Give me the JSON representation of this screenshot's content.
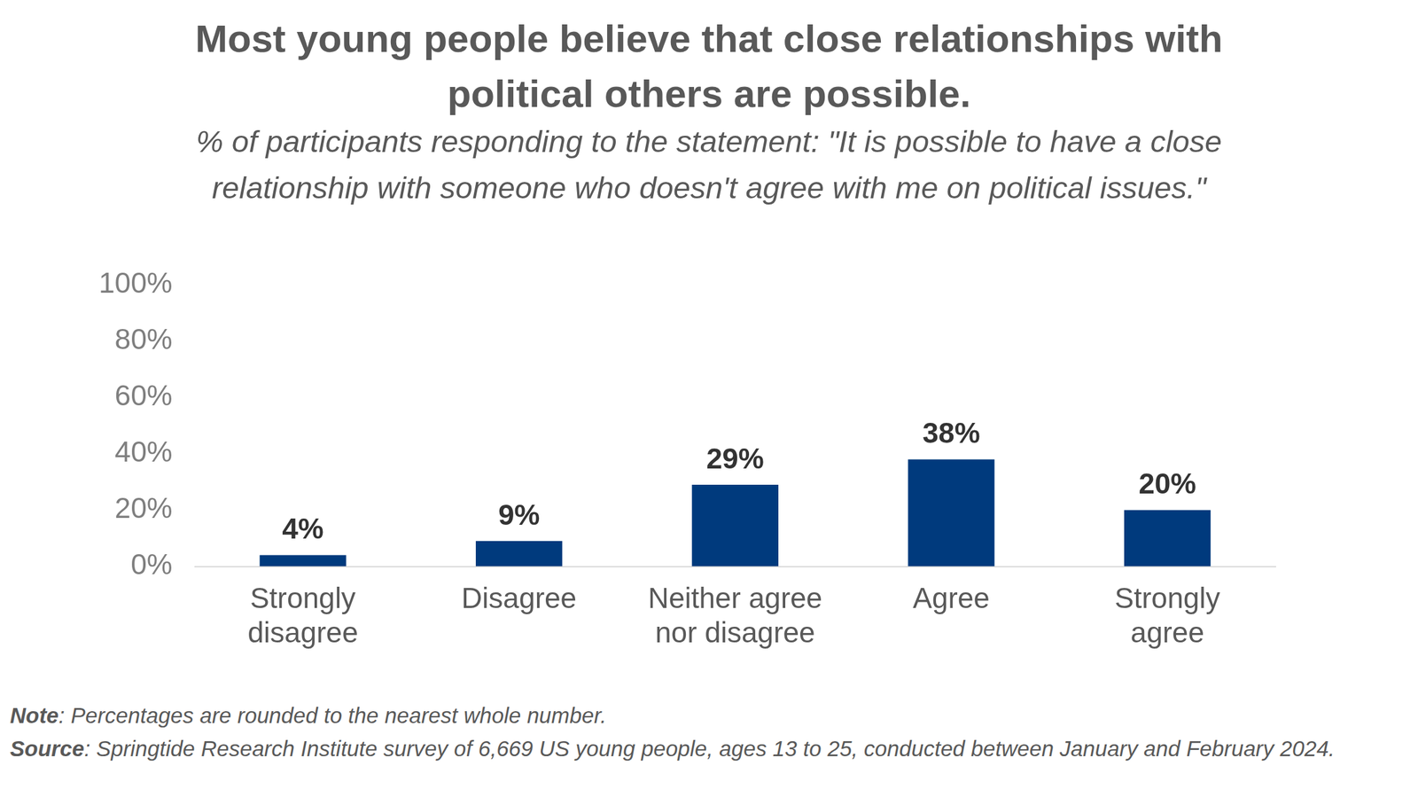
{
  "chart_data": {
    "type": "bar",
    "title": "Most young people believe that close relationships with political others are possible.",
    "subtitle": "% of participants responding to the statement: \"It is possible to have a close relationship with someone who doesn't agree with me on political issues.\"",
    "categories": [
      "Strongly disagree",
      "Disagree",
      "Neither agree nor disagree",
      "Agree",
      "Strongly agree"
    ],
    "values": [
      4,
      9,
      29,
      38,
      20
    ],
    "value_labels": [
      "4%",
      "9%",
      "29%",
      "38%",
      "20%"
    ],
    "color": "#003a7d",
    "ylim": [
      0,
      100
    ],
    "yticks": [
      {
        "value": 0,
        "label": "0%"
      },
      {
        "value": 20,
        "label": "20%"
      },
      {
        "value": 40,
        "label": "40%"
      },
      {
        "value": 60,
        "label": "60%"
      },
      {
        "value": 80,
        "label": "80%"
      },
      {
        "value": 100,
        "label": "100%"
      }
    ],
    "grid": false,
    "data_labels": true,
    "notes": [
      "Note: Percentages are rounded to the nearest whole number.",
      "Source: Springtide Research Institute survey of 6,669 US young people, ages 13 to 25, conducted between January and February 2024."
    ]
  }
}
